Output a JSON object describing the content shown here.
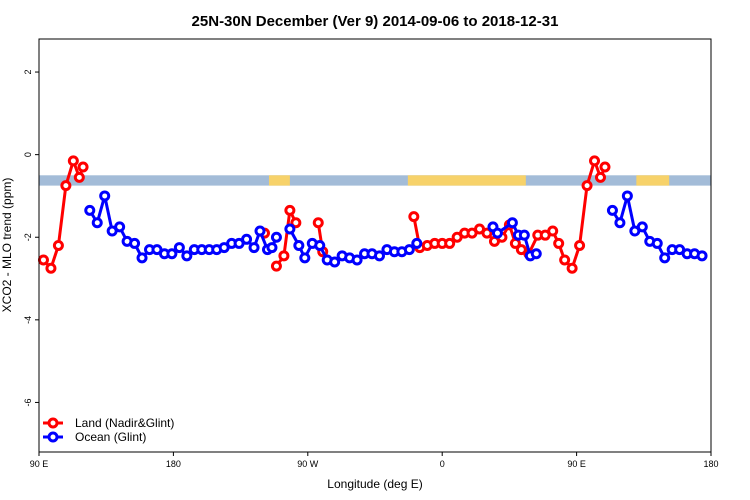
{
  "chart_data": {
    "type": "line",
    "title": "25N-30N December (Ver 9)   2014-09-06 to 2018-12-31",
    "xlabel": "Longitude (deg E)",
    "ylabel": "XCO2 - MLO trend (ppm)",
    "xlim": [
      90,
      540
    ],
    "ylim": [
      -7.2,
      2.8
    ],
    "x_ticks": [
      {
        "value": 90,
        "label": "90 E"
      },
      {
        "value": 180,
        "label": "180"
      },
      {
        "value": 270,
        "label": "90 W"
      },
      {
        "value": 360,
        "label": "0"
      },
      {
        "value": 450,
        "label": "90 E"
      },
      {
        "value": 540,
        "label": "180"
      }
    ],
    "y_ticks": [
      {
        "value": 2,
        "label": "2"
      },
      {
        "value": 0,
        "label": "0"
      },
      {
        "value": -2,
        "label": "-2"
      },
      {
        "value": -4,
        "label": "-4"
      },
      {
        "value": -6,
        "label": "-6"
      }
    ],
    "legend_position": "bottom-left",
    "land_ocean_strip": {
      "y_range": [
        -0.75,
        -0.5
      ],
      "ocean_color": "#a3bcd8",
      "land_color": "#f7d26a",
      "land_spans": [
        [
          244,
          258
        ],
        [
          337,
          416
        ],
        [
          490,
          512
        ]
      ]
    },
    "series": [
      {
        "name": "Land (Nadir&Glint)",
        "color": "#ff0000",
        "segments": [
          [
            [
              93,
              -2.55
            ],
            [
              98,
              -2.75
            ],
            [
              103,
              -2.2
            ],
            [
              108,
              -0.75
            ],
            [
              113,
              -0.15
            ],
            [
              117,
              -0.55
            ],
            [
              119.5,
              -0.3
            ]
          ],
          [
            [
              241,
              -1.9
            ]
          ],
          [
            [
              249,
              -2.7
            ],
            [
              254,
              -2.45
            ],
            [
              258,
              -1.35
            ],
            [
              262,
              -1.65
            ]
          ],
          [
            [
              277,
              -1.65
            ],
            [
              280,
              -2.35
            ]
          ],
          [
            [
              341,
              -1.5
            ],
            [
              345,
              -2.25
            ],
            [
              350,
              -2.2
            ],
            [
              355,
              -2.15
            ],
            [
              360,
              -2.15
            ],
            [
              365,
              -2.15
            ],
            [
              370,
              -2.0
            ],
            [
              375,
              -1.9
            ],
            [
              380,
              -1.9
            ],
            [
              385,
              -1.8
            ],
            [
              390,
              -1.9
            ],
            [
              395,
              -2.1
            ],
            [
              400,
              -2.0
            ],
            [
              405,
              -1.7
            ],
            [
              409,
              -2.15
            ],
            [
              413,
              -2.3
            ],
            [
              418,
              -2.4
            ],
            [
              424,
              -1.95
            ],
            [
              429,
              -1.95
            ],
            [
              434,
              -1.85
            ],
            [
              438,
              -2.15
            ],
            [
              442,
              -2.55
            ],
            [
              447,
              -2.75
            ],
            [
              452,
              -2.2
            ],
            [
              457,
              -0.75
            ],
            [
              462,
              -0.15
            ],
            [
              466,
              -0.55
            ],
            [
              469,
              -0.3
            ]
          ]
        ]
      },
      {
        "name": "Ocean (Glint)",
        "color": "#0000ff",
        "segments": [
          [
            [
              124,
              -1.35
            ],
            [
              129,
              -1.65
            ],
            [
              134,
              -1.0
            ],
            [
              139,
              -1.85
            ],
            [
              144,
              -1.75
            ],
            [
              149,
              -2.1
            ],
            [
              154,
              -2.15
            ],
            [
              159,
              -2.5
            ],
            [
              164,
              -2.3
            ],
            [
              169,
              -2.3
            ],
            [
              174,
              -2.4
            ],
            [
              179,
              -2.4
            ],
            [
              184,
              -2.25
            ],
            [
              189,
              -2.45
            ],
            [
              194,
              -2.3
            ],
            [
              199,
              -2.3
            ],
            [
              204,
              -2.3
            ],
            [
              209,
              -2.3
            ],
            [
              214,
              -2.25
            ],
            [
              219,
              -2.15
            ],
            [
              224,
              -2.15
            ],
            [
              229,
              -2.05
            ],
            [
              234,
              -2.25
            ],
            [
              238,
              -1.85
            ],
            [
              243,
              -2.3
            ],
            [
              246,
              -2.25
            ],
            [
              249,
              -2.0
            ]
          ],
          [
            [
              258,
              -1.8
            ],
            [
              264,
              -2.2
            ],
            [
              268,
              -2.5
            ],
            [
              273,
              -2.15
            ],
            [
              278,
              -2.2
            ],
            [
              283,
              -2.55
            ],
            [
              288,
              -2.6
            ],
            [
              293,
              -2.45
            ],
            [
              298,
              -2.5
            ],
            [
              303,
              -2.55
            ],
            [
              308,
              -2.4
            ],
            [
              313,
              -2.4
            ],
            [
              318,
              -2.45
            ],
            [
              323,
              -2.3
            ],
            [
              328,
              -2.35
            ],
            [
              333,
              -2.35
            ],
            [
              338,
              -2.3
            ],
            [
              343,
              -2.15
            ]
          ],
          [
            [
              394,
              -1.75
            ],
            [
              397,
              -1.9
            ],
            [
              407,
              -1.65
            ],
            [
              411,
              -1.95
            ],
            [
              415,
              -1.95
            ],
            [
              419,
              -2.45
            ],
            [
              423,
              -2.4
            ]
          ],
          [
            [
              474,
              -1.35
            ],
            [
              479,
              -1.65
            ],
            [
              484,
              -1.0
            ],
            [
              489,
              -1.85
            ],
            [
              494,
              -1.75
            ],
            [
              499,
              -2.1
            ],
            [
              504,
              -2.15
            ],
            [
              509,
              -2.5
            ],
            [
              514,
              -2.3
            ],
            [
              519,
              -2.3
            ],
            [
              524,
              -2.4
            ],
            [
              529,
              -2.4
            ],
            [
              534,
              -2.45
            ]
          ]
        ]
      }
    ]
  }
}
